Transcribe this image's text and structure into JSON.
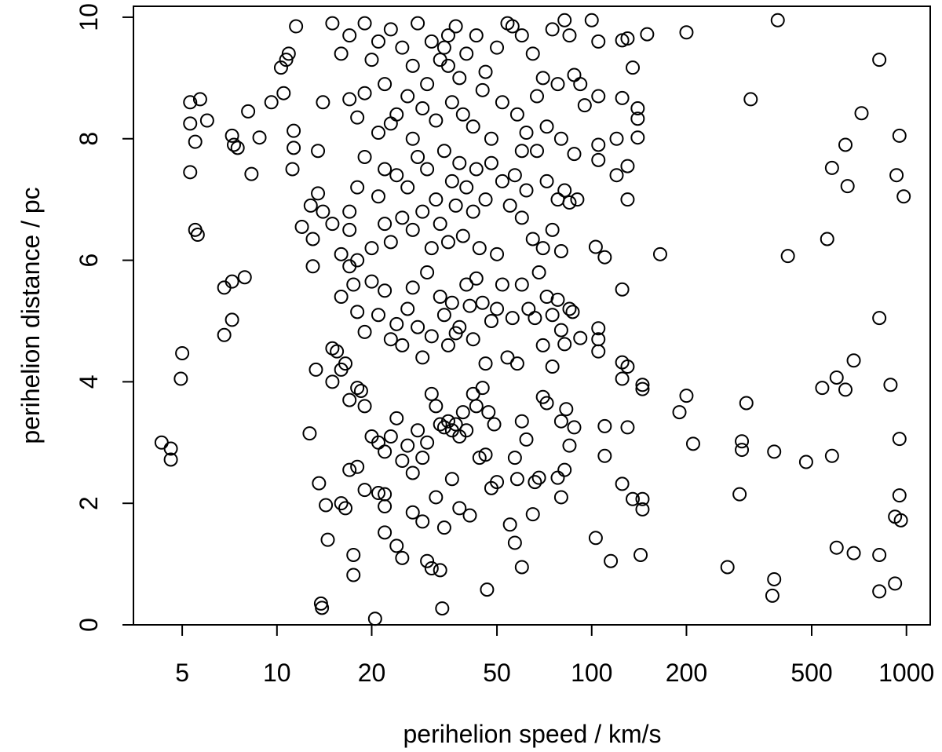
{
  "chart_data": {
    "type": "scatter",
    "xlabel": "perihelion speed / km/s",
    "ylabel": "perihelion distance / pc",
    "xlog": true,
    "xlim": [
      3.5,
      1190
    ],
    "xticks": [
      5,
      10,
      20,
      50,
      100,
      200,
      500,
      1000
    ],
    "ylim": [
      0,
      10.18
    ],
    "yticks": [
      0,
      2,
      4,
      6,
      8,
      10
    ],
    "color": "#000000",
    "x": [
      4.3,
      4.6,
      4.6,
      5,
      4.95,
      5.3,
      5.7,
      6,
      5.3,
      5.5,
      5.3,
      5.5,
      5.6,
      6.8,
      7.2,
      7.9,
      7.2,
      6.8,
      7.2,
      7.3,
      7.5,
      8.1,
      8.3,
      8.8,
      9.6,
      10.3,
      10.7,
      10.9,
      10.5,
      11.5,
      11.3,
      11.3,
      11.2,
      12,
      12.8,
      13,
      13.5,
      13.5,
      12.7,
      13.3,
      13.6,
      13.8,
      13.9,
      14.3,
      14.5,
      20.5,
      17.5,
      17.5,
      33.5,
      46.5,
      390,
      820,
      320,
      720,
      950,
      640,
      580,
      930,
      980,
      650,
      560,
      420,
      165,
      820,
      680,
      600,
      540,
      640,
      890,
      200,
      190,
      310,
      210,
      300,
      300,
      380,
      480,
      580,
      950,
      295,
      950,
      920,
      960,
      600,
      680,
      820,
      270,
      380,
      375,
      820,
      920,
      200,
      150,
      130,
      125,
      105,
      100,
      135,
      105,
      140,
      140,
      125,
      120,
      140,
      130,
      105,
      105,
      120,
      130,
      103,
      110,
      125,
      105,
      105,
      105,
      125,
      130,
      145,
      145,
      125,
      130,
      110,
      110,
      125,
      135,
      145,
      145,
      103,
      115,
      143,
      15,
      15.5,
      16,
      15,
      16.5,
      17,
      18,
      18.5,
      19,
      17,
      18,
      19,
      21,
      22,
      22,
      22,
      24,
      25,
      16,
      16.5,
      20,
      21,
      22,
      23,
      24,
      25,
      26,
      27,
      28,
      29,
      30,
      31,
      32,
      33,
      34,
      35,
      36,
      37,
      38,
      39,
      40,
      42,
      43,
      45,
      47,
      49,
      50,
      48,
      46,
      44,
      41,
      38,
      36,
      34,
      32,
      30,
      31,
      33,
      29,
      27,
      55,
      57,
      58,
      60,
      62,
      60,
      57,
      66,
      68,
      70,
      72,
      78,
      80,
      82,
      85,
      88,
      83,
      80,
      65,
      16,
      17,
      17.5,
      18,
      19,
      20,
      21,
      22,
      23,
      24,
      25,
      26,
      27,
      28,
      29,
      30,
      31,
      33,
      34,
      35,
      36,
      37,
      38,
      40,
      41,
      42,
      43,
      45,
      46,
      48,
      50,
      52,
      54,
      56,
      58,
      60,
      63,
      66,
      68,
      70,
      72,
      75,
      78,
      80,
      82,
      85,
      87,
      92,
      75,
      13,
      14,
      15,
      16,
      17,
      17,
      18,
      18,
      19,
      20,
      21,
      22,
      22,
      23,
      24,
      25,
      26,
      27,
      28,
      29,
      30,
      31,
      32,
      33,
      34,
      35,
      36,
      37,
      38,
      39,
      40,
      42,
      43,
      44,
      46,
      48,
      50,
      52,
      55,
      57,
      60,
      62,
      65,
      67,
      70,
      72,
      75,
      78,
      80,
      82,
      85,
      88,
      90,
      60,
      14,
      15,
      16,
      17,
      17,
      18,
      19,
      19,
      20,
      21,
      21,
      22,
      23,
      23,
      24,
      25,
      26,
      27,
      27,
      28,
      29,
      30,
      31,
      32,
      33,
      34,
      35,
      35,
      36,
      37,
      38,
      39,
      40,
      42,
      43,
      45,
      46,
      48,
      50,
      52,
      54,
      56,
      58,
      60,
      62,
      65,
      67,
      70,
      72,
      75,
      78,
      80,
      82,
      85,
      88,
      92,
      95
    ],
    "values": [
      3.0,
      2.9,
      2.72,
      4.47,
      4.05,
      8.6,
      8.65,
      8.3,
      8.25,
      7.95,
      7.45,
      6.5,
      6.42,
      5.55,
      5.65,
      5.72,
      5.02,
      4.77,
      8.05,
      7.9,
      7.85,
      8.45,
      7.42,
      8.02,
      8.6,
      9.17,
      9.3,
      9.4,
      8.75,
      9.85,
      8.13,
      7.85,
      7.5,
      6.55,
      6.9,
      5.9,
      7.1,
      7.8,
      3.15,
      4.2,
      2.33,
      0.35,
      0.28,
      1.97,
      1.4,
      0.1,
      1.15,
      0.82,
      0.27,
      0.58,
      9.95,
      9.3,
      8.65,
      8.42,
      8.05,
      7.9,
      7.52,
      7.4,
      7.05,
      7.22,
      6.35,
      6.07,
      6.1,
      5.05,
      4.35,
      4.07,
      3.9,
      3.87,
      3.95,
      3.77,
      3.5,
      3.65,
      2.98,
      3.02,
      2.88,
      2.85,
      2.68,
      2.78,
      3.06,
      2.15,
      2.13,
      1.78,
      1.72,
      1.27,
      1.18,
      1.15,
      0.95,
      0.75,
      0.48,
      0.55,
      0.68,
      9.75,
      9.72,
      9.65,
      9.62,
      9.6,
      9.95,
      9.17,
      8.7,
      8.5,
      8.33,
      8.67,
      8.0,
      8.02,
      7.55,
      7.9,
      7.65,
      7.4,
      7.0,
      6.22,
      6.05,
      5.52,
      4.88,
      4.7,
      4.5,
      4.32,
      4.25,
      3.95,
      3.88,
      4.05,
      3.25,
      3.27,
      2.78,
      2.32,
      2.07,
      2.07,
      1.9,
      1.43,
      1.05,
      1.15,
      4.55,
      4.5,
      4.2,
      4.0,
      4.3,
      3.7,
      3.9,
      3.85,
      3.6,
      2.55,
      2.6,
      2.22,
      2.17,
      2.15,
      1.95,
      1.52,
      1.3,
      1.1,
      2.0,
      1.92,
      3.1,
      3.0,
      2.85,
      3.1,
      3.4,
      2.7,
      2.95,
      2.5,
      3.2,
      2.75,
      3.0,
      3.8,
      3.6,
      3.3,
      3.25,
      3.35,
      3.2,
      3.3,
      3.1,
      3.5,
      3.2,
      3.8,
      3.6,
      3.9,
      3.5,
      3.3,
      2.35,
      2.25,
      2.8,
      2.75,
      1.8,
      1.92,
      2.4,
      1.6,
      2.1,
      1.05,
      0.93,
      0.9,
      1.7,
      1.85,
      1.65,
      1.35,
      2.4,
      0.95,
      3.05,
      3.35,
      2.75,
      2.35,
      2.42,
      3.75,
      3.65,
      2.42,
      2.1,
      2.55,
      2.95,
      3.25,
      3.55,
      3.35,
      1.82,
      5.4,
      5.9,
      5.6,
      5.15,
      4.82,
      5.65,
      5.1,
      5.5,
      4.7,
      4.95,
      4.6,
      5.2,
      5.55,
      4.9,
      4.4,
      5.8,
      4.75,
      5.4,
      5.1,
      4.6,
      5.3,
      4.8,
      4.9,
      5.6,
      5.25,
      4.7,
      5.7,
      5.3,
      4.3,
      5.0,
      5.2,
      5.6,
      4.4,
      5.05,
      4.3,
      5.6,
      5.2,
      5.05,
      5.8,
      4.6,
      5.4,
      4.25,
      5.35,
      4.85,
      4.62,
      5.2,
      5.15,
      4.72,
      5.1,
      6.35,
      6.8,
      6.6,
      6.1,
      6.5,
      6.8,
      7.2,
      6.0,
      7.7,
      6.2,
      7.05,
      6.6,
      7.5,
      6.3,
      7.4,
      6.7,
      7.2,
      6.5,
      7.7,
      6.8,
      7.5,
      6.2,
      7.0,
      6.6,
      7.8,
      6.3,
      7.3,
      6.9,
      7.6,
      6.4,
      7.2,
      6.8,
      7.5,
      6.2,
      7.0,
      7.6,
      6.1,
      7.3,
      6.9,
      7.4,
      6.7,
      7.15,
      6.35,
      7.8,
      6.2,
      7.3,
      6.5,
      7.0,
      6.15,
      7.15,
      6.95,
      7.75,
      7.0,
      7.8,
      8.6,
      9.9,
      9.4,
      8.65,
      9.7,
      8.35,
      9.9,
      8.75,
      9.3,
      9.6,
      8.1,
      8.9,
      9.8,
      8.25,
      8.4,
      9.5,
      8.7,
      9.2,
      8.0,
      9.9,
      8.5,
      8.9,
      9.6,
      8.3,
      9.3,
      9.5,
      9.7,
      9.2,
      8.6,
      9.85,
      9.0,
      8.4,
      9.4,
      8.2,
      9.7,
      8.8,
      9.1,
      8.0,
      9.5,
      8.6,
      9.9,
      9.85,
      8.4,
      9.7,
      8.1,
      9.4,
      8.7,
      9.0,
      8.2,
      9.8,
      8.9,
      8.0,
      9.95,
      9.7,
      9.05,
      8.9,
      8.55
    ]
  }
}
